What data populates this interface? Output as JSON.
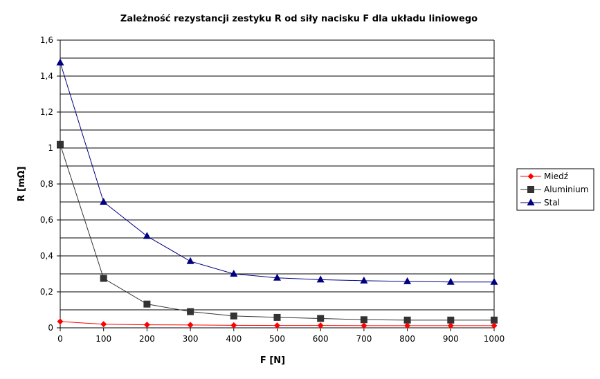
{
  "chart_data": {
    "type": "line",
    "title": "Zależność rezystancji zestyku R od siły nacisku F dla układu liniowego",
    "xlabel": "F [N]",
    "ylabel": "R [mΩ]",
    "x": [
      0,
      100,
      200,
      300,
      400,
      500,
      600,
      700,
      800,
      900,
      1000
    ],
    "x_ticks": [
      "0",
      "100",
      "200",
      "300",
      "400",
      "500",
      "600",
      "700",
      "800",
      "900",
      "1000"
    ],
    "ylim": [
      0,
      1.6
    ],
    "y_ticks": [
      "0",
      "0,2",
      "0,4",
      "0,6",
      "0,8",
      "1",
      "1,2",
      "1,4",
      "1,6"
    ],
    "y_tick_values": [
      0,
      0.2,
      0.4,
      0.6,
      0.8,
      1.0,
      1.2,
      1.4,
      1.6
    ],
    "grid": true,
    "legend_position": "right",
    "series": [
      {
        "name": "Miedź",
        "color": "#ff0000",
        "marker": "diamond",
        "values": [
          0.035,
          0.02,
          0.017,
          0.016,
          0.014,
          0.013,
          0.013,
          0.012,
          0.012,
          0.012,
          0.012
        ]
      },
      {
        "name": "Aluminium",
        "color": "#333333",
        "marker": "square",
        "values": [
          1.02,
          0.275,
          0.132,
          0.09,
          0.066,
          0.058,
          0.052,
          0.045,
          0.043,
          0.043,
          0.043
        ]
      },
      {
        "name": "Stal",
        "color": "#000080",
        "marker": "triangle",
        "values": [
          1.475,
          0.7,
          0.51,
          0.37,
          0.3,
          0.278,
          0.268,
          0.262,
          0.258,
          0.255,
          0.255
        ]
      }
    ]
  }
}
